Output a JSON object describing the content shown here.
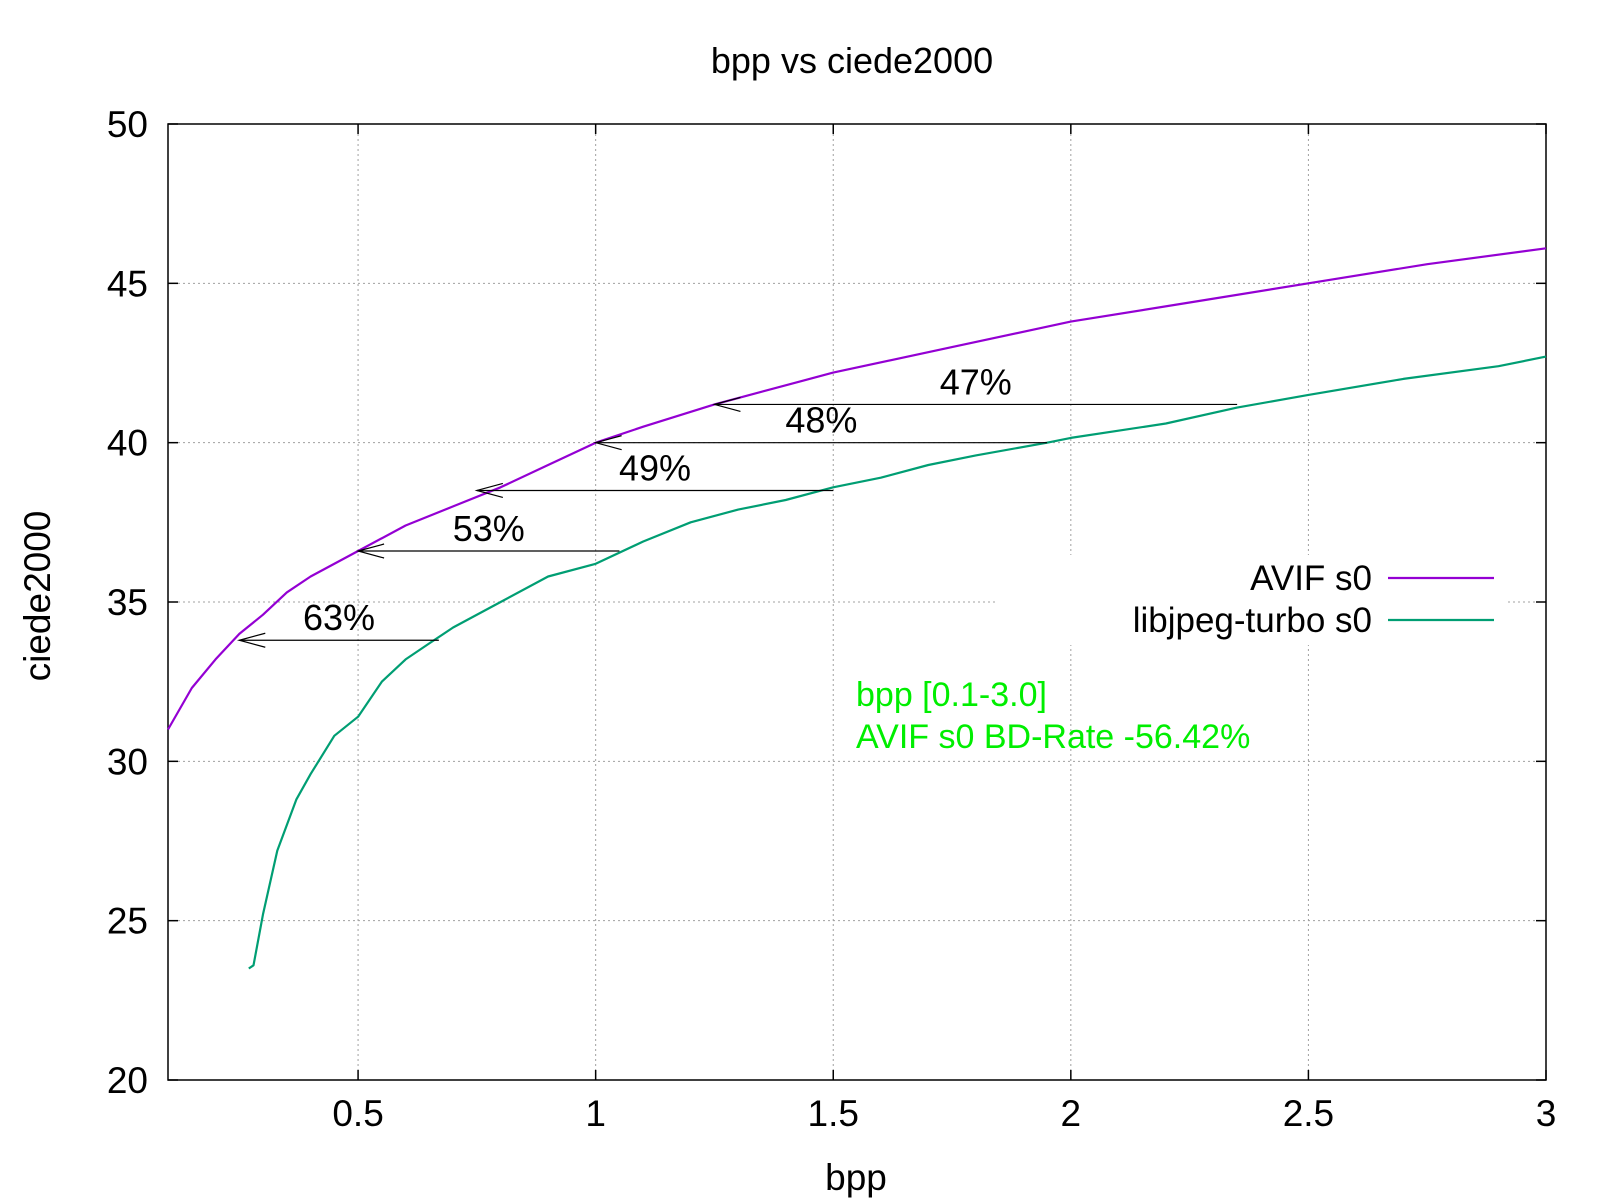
{
  "chart_data": {
    "type": "line",
    "title": "bpp vs ciede2000",
    "xlabel": "bpp",
    "ylabel": "ciede2000",
    "xlim": [
      0.1,
      3.0
    ],
    "ylim": [
      20,
      50
    ],
    "xticks": [
      0.5,
      1,
      1.5,
      2,
      2.5,
      3
    ],
    "xtick_labels": [
      "0.5",
      "1",
      "1.5",
      "2",
      "2.5",
      "3"
    ],
    "yticks": [
      20,
      25,
      30,
      35,
      40,
      45,
      50
    ],
    "ytick_labels": [
      "20",
      "25",
      "30",
      "35",
      "40",
      "45",
      "50"
    ],
    "grid": true,
    "legend_position": "right",
    "series": [
      {
        "name": "AVIF s0",
        "color": "#9400d3",
        "x": [
          0.1,
          0.15,
          0.2,
          0.25,
          0.3,
          0.35,
          0.4,
          0.5,
          0.6,
          0.7,
          0.8,
          0.9,
          1.0,
          1.1,
          1.25,
          1.5,
          1.75,
          2.0,
          2.25,
          2.5,
          2.75,
          3.0
        ],
        "y": [
          31.0,
          32.3,
          33.2,
          34.0,
          34.6,
          35.3,
          35.8,
          36.6,
          37.4,
          38.0,
          38.6,
          39.3,
          40.0,
          40.5,
          41.2,
          42.2,
          43.0,
          43.8,
          44.4,
          45.0,
          45.6,
          46.1
        ]
      },
      {
        "name": "libjpeg-turbo s0",
        "color": "#009e73",
        "x": [
          0.27,
          0.28,
          0.3,
          0.33,
          0.37,
          0.4,
          0.45,
          0.5,
          0.55,
          0.6,
          0.65,
          0.7,
          0.8,
          0.9,
          1.0,
          1.1,
          1.2,
          1.3,
          1.4,
          1.5,
          1.6,
          1.7,
          1.8,
          1.95,
          2.0,
          2.2,
          2.35,
          2.5,
          2.7,
          2.9,
          3.0
        ],
        "y": [
          23.5,
          23.6,
          25.2,
          27.2,
          28.8,
          29.6,
          30.8,
          31.4,
          32.5,
          33.2,
          33.7,
          34.2,
          35.0,
          35.8,
          36.2,
          36.9,
          37.5,
          37.9,
          38.2,
          38.6,
          38.9,
          39.3,
          39.6,
          40.0,
          40.15,
          40.6,
          41.1,
          41.5,
          42.0,
          42.4,
          42.7
        ]
      }
    ],
    "annotations": [
      {
        "label": "47%",
        "from_x": 2.35,
        "to_x": 1.25,
        "y": 41.2
      },
      {
        "label": "48%",
        "from_x": 1.95,
        "to_x": 1.0,
        "y": 40.0
      },
      {
        "label": "49%",
        "from_x": 1.5,
        "to_x": 0.75,
        "y": 38.5
      },
      {
        "label": "53%",
        "from_x": 1.05,
        "to_x": 0.5,
        "y": 36.6
      },
      {
        "label": "63%",
        "from_x": 0.67,
        "to_x": 0.25,
        "y": 33.8
      }
    ],
    "notes": [
      "bpp [0.1-3.0]",
      "AVIF s0 BD-Rate -56.42%"
    ],
    "note_color": "#00ee00"
  }
}
